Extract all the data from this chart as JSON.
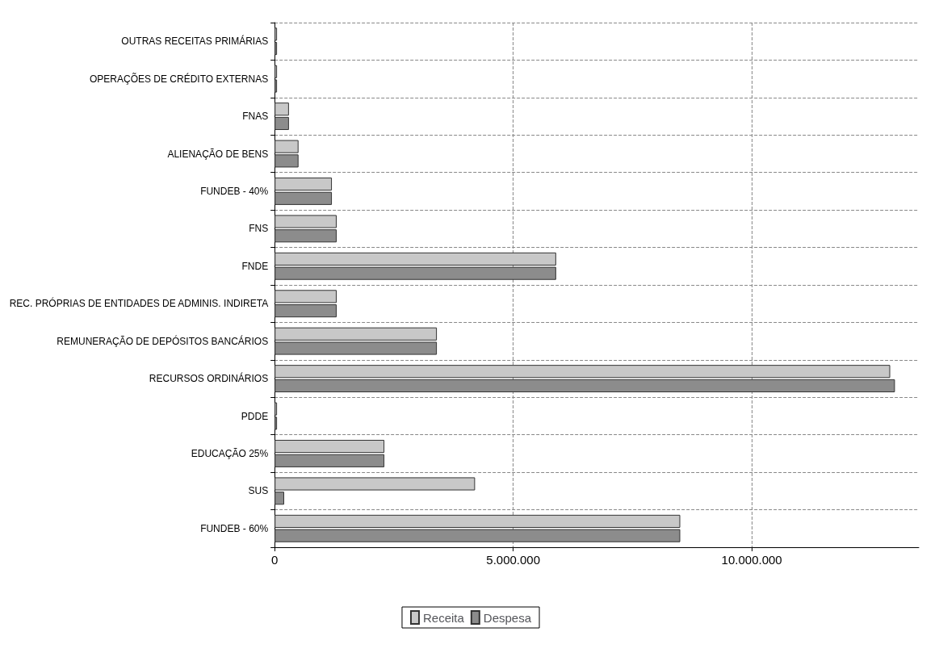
{
  "chart_data": {
    "type": "bar",
    "orientation": "horizontal",
    "categories": [
      "OUTRAS RECEITAS PRIMÁRIAS",
      "OPERAÇÕES DE CRÉDITO EXTERNAS",
      "FNAS",
      "ALIENAÇÃO DE BENS",
      "FUNDEB - 40%",
      "FNS",
      "FNDE",
      "REC. PRÓPRIAS DE ENTIDADES DE ADMINIS. INDIRETA",
      "REMUNERAÇÃO DE DEPÓSITOS BANCÁRIOS",
      "RECURSOS ORDINÁRIOS",
      "PDDE",
      "EDUCAÇÃO 25%",
      "SUS",
      "FUNDEB - 60%"
    ],
    "series": [
      {
        "name": "Receita",
        "color": "#c8c8c8",
        "values": [
          50000,
          50000,
          300000,
          500000,
          1200000,
          1300000,
          5900000,
          1300000,
          3400000,
          12900000,
          50000,
          2300000,
          4200000,
          8500000
        ]
      },
      {
        "name": "Despesa",
        "color": "#8c8c8c",
        "values": [
          50000,
          50000,
          300000,
          500000,
          1200000,
          1300000,
          5900000,
          1300000,
          3400000,
          13000000,
          50000,
          2300000,
          200000,
          8500000
        ]
      }
    ],
    "xlim": [
      0,
      13500000
    ],
    "xticks": [
      0,
      {
        "value": 5000000,
        "label": "5.000.000"
      },
      {
        "value": 10000000,
        "label": "10.000.000"
      }
    ],
    "grid": true,
    "legend": "bottom"
  }
}
